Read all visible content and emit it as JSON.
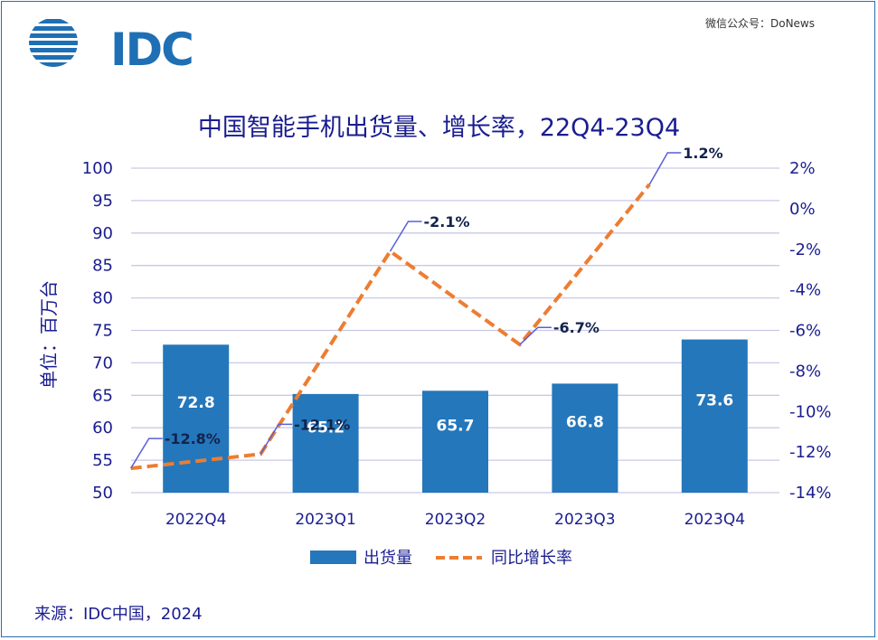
{
  "header": {
    "logo_text": "IDC",
    "watermark": "微信公众号：DoNews"
  },
  "chart_data": {
    "type": "bar",
    "title": "中国智能手机出货量、增长率，22Q4-23Q4",
    "ylabel": "单位：百万台",
    "categories": [
      "2022Q4",
      "2023Q1",
      "2023Q2",
      "2023Q3",
      "2023Q4"
    ],
    "series": [
      {
        "name": "出货量",
        "type": "bar",
        "axis": "left",
        "values": [
          72.8,
          65.2,
          65.7,
          66.8,
          73.6
        ],
        "labels": [
          "72.8",
          "65.2",
          "65.7",
          "66.8",
          "73.6"
        ],
        "color": "#2477bb"
      },
      {
        "name": "同比增长率",
        "type": "line",
        "axis": "right",
        "style": "dashed",
        "values": [
          -12.8,
          -12.1,
          -2.1,
          -6.7,
          1.2
        ],
        "labels": [
          "-12.8%",
          "-12.1%",
          "-2.1%",
          "-6.7%",
          "1.2%"
        ],
        "color": "#ed7d31"
      }
    ],
    "ylim": [
      50,
      100
    ],
    "yticks": [
      "50",
      "55",
      "60",
      "65",
      "70",
      "75",
      "80",
      "85",
      "90",
      "95",
      "100"
    ],
    "y2lim": [
      -14,
      2
    ],
    "y2ticks": [
      "-14%",
      "-12%",
      "-10%",
      "-8%",
      "-6%",
      "-4%",
      "-2%",
      "0%",
      "2%"
    ],
    "grid": true,
    "legend_position": "bottom"
  },
  "footer": {
    "source": "来源：IDC中国，2024"
  },
  "colors": {
    "title": "#1a1d8f",
    "bar": "#2477bb",
    "line": "#ed7d31",
    "grid": "#c9c9e8",
    "leader": "#5a5fd6"
  }
}
